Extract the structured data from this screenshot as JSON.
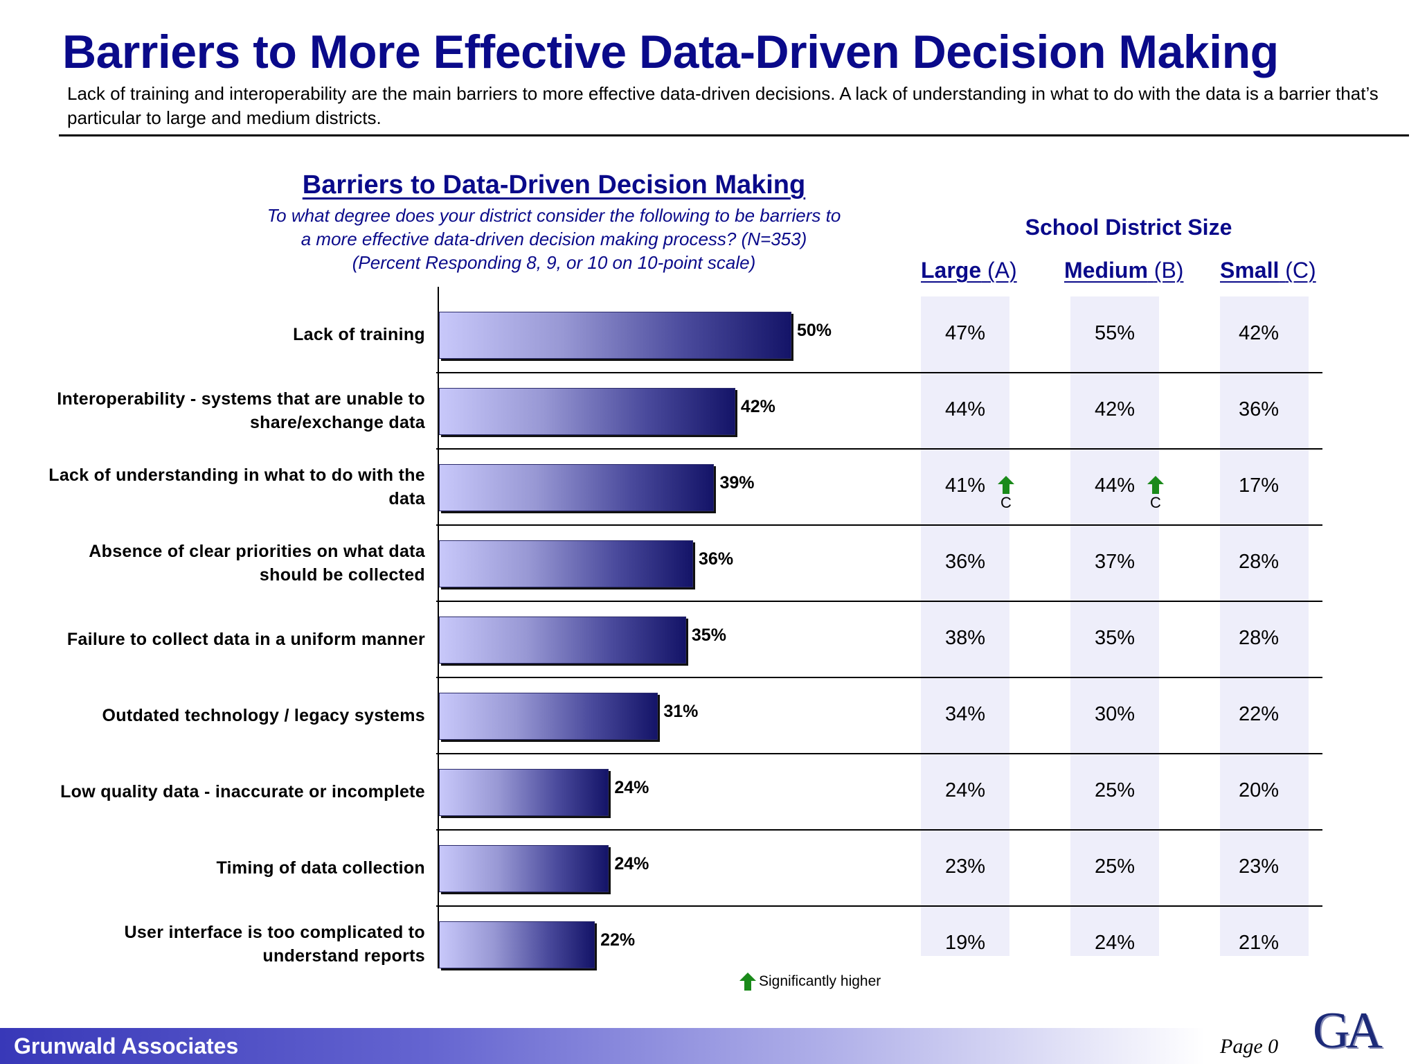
{
  "header": {
    "title": "Barriers to More Effective Data-Driven Decision Making",
    "subtitle": "Lack of training and interoperability are the main barriers to more effective data-driven decisions. A lack of understanding in what to do with the data is a barrier that’s particular to large and medium districts."
  },
  "chart_data": {
    "type": "bar",
    "orientation": "horizontal",
    "title": "Barriers to Data-Driven Decision Making",
    "question_lines": [
      "To what degree does your district consider the following to be barriers to",
      "a more effective data-driven decision making process? (N=353)",
      "(Percent Responding 8, 9, or 10 on 10-point scale)"
    ],
    "categories": [
      [
        "Lack of training"
      ],
      [
        "Interoperability - systems that are unable to",
        "share/exchange data"
      ],
      [
        "Lack of understanding in what to do with the",
        "data"
      ],
      [
        "Absence of clear priorities on what data",
        "should be collected"
      ],
      [
        "Failure to collect data in a uniform manner"
      ],
      [
        "Outdated technology / legacy systems"
      ],
      [
        "Low quality data - inaccurate or incomplete"
      ],
      [
        "Timing of data collection"
      ],
      [
        "User interface is too complicated to",
        "understand reports"
      ]
    ],
    "values": [
      50,
      42,
      39,
      36,
      35,
      31,
      24,
      24,
      22
    ],
    "value_labels": [
      "50%",
      "42%",
      "39%",
      "36%",
      "35%",
      "31%",
      "24%",
      "24%",
      "22%"
    ],
    "xlim": [
      0,
      100
    ],
    "colors": {
      "bar_light": "#c8c8fa",
      "bar_dark": "#141468"
    }
  },
  "table": {
    "header": "School District Size",
    "columns": [
      {
        "name": "Large",
        "code": "(A)"
      },
      {
        "name": "Medium",
        "code": "(B)"
      },
      {
        "name": "Small",
        "code": "(C)"
      }
    ],
    "rows": [
      [
        "47%",
        "55%",
        "42%"
      ],
      [
        "44%",
        "42%",
        "36%"
      ],
      [
        "41%",
        "44%",
        "17%"
      ],
      [
        "36%",
        "37%",
        "28%"
      ],
      [
        "38%",
        "35%",
        "28%"
      ],
      [
        "34%",
        "30%",
        "22%"
      ],
      [
        "24%",
        "25%",
        "20%"
      ],
      [
        "23%",
        "25%",
        "23%"
      ],
      [
        "19%",
        "24%",
        "21%"
      ]
    ],
    "significance": [
      {
        "row": 2,
        "col": 0,
        "letter": "C"
      },
      {
        "row": 2,
        "col": 1,
        "letter": "C"
      }
    ]
  },
  "legend": {
    "label": "Significantly higher",
    "icon": "green-up-arrow-icon",
    "color": "#1a8a1a"
  },
  "footer": {
    "company": "Grunwald Associates",
    "page": "Page 0",
    "logo_text": "GA"
  },
  "colors": {
    "title": "#0a0a8a",
    "column_band": "#eeeefa",
    "arrow": "#1a8a1a"
  }
}
